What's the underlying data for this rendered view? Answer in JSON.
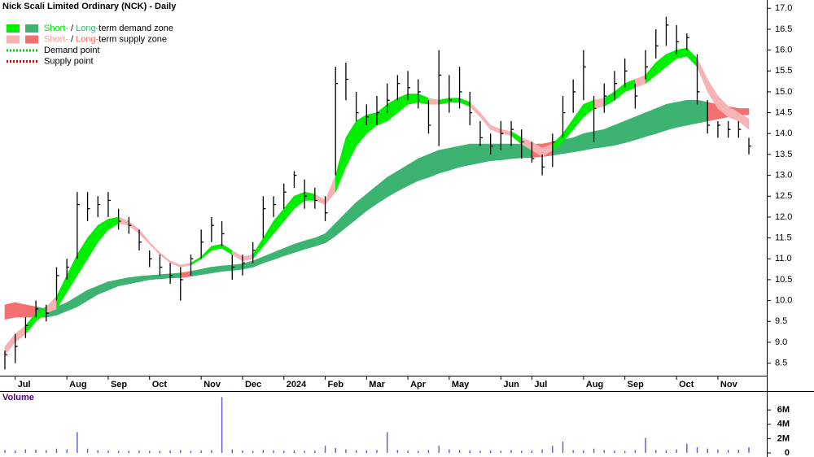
{
  "chart_data": [
    {
      "type": "ohlc",
      "title": "Nick Scali Limited Ordinary (NCK) - Daily",
      "legend": [
        {
          "texts": [
            "Short-",
            " / ",
            "Long-",
            "term demand zone"
          ],
          "text_colors": [
            "#00dd00",
            "#000000",
            "#3cb371",
            "#000000"
          ],
          "swatches": [
            "#00ee00",
            "#3cb371"
          ]
        },
        {
          "texts": [
            "Short-",
            " / ",
            "Long-",
            "term supply zone"
          ],
          "text_colors": [
            "#f5a0a0",
            "#000000",
            "#f26d6d",
            "#000000"
          ],
          "swatches": [
            "#f7b3b3",
            "#f47070"
          ]
        },
        {
          "texts": [
            "Demand point"
          ],
          "text_colors": [
            "#000000"
          ],
          "line": "#00cc00"
        },
        {
          "texts": [
            "Supply point"
          ],
          "text_colors": [
            "#000000"
          ],
          "line": "#dd0000"
        }
      ],
      "categories": [
        null,
        "Jul",
        null,
        null,
        null,
        null,
        "Aug",
        null,
        null,
        null,
        "Sep",
        null,
        null,
        null,
        "Oct",
        null,
        null,
        null,
        null,
        "Nov",
        null,
        null,
        null,
        "Dec",
        null,
        null,
        null,
        "2024",
        null,
        null,
        null,
        "Feb",
        null,
        null,
        null,
        "Mar",
        null,
        null,
        null,
        "Apr",
        null,
        null,
        null,
        "May",
        null,
        null,
        null,
        null,
        "Jun",
        null,
        null,
        "Jul",
        null,
        null,
        null,
        null,
        "Aug",
        null,
        null,
        null,
        "Sep",
        null,
        null,
        null,
        null,
        "Oct",
        null,
        null,
        null,
        "Nov",
        null,
        null,
        null
      ],
      "close": [
        8.7,
        8.9,
        9.4,
        9.8,
        9.7,
        10.6,
        10.8,
        12.3,
        12.2,
        12.3,
        12.4,
        11.9,
        11.8,
        11.4,
        11.0,
        10.8,
        10.6,
        10.5,
        11.0,
        11.4,
        11.8,
        11.6,
        10.8,
        10.9,
        11.2,
        12.2,
        12.3,
        12.6,
        13.0,
        12.5,
        12.4,
        12.1,
        15.2,
        15.3,
        14.5,
        14.4,
        14.5,
        14.8,
        15.2,
        15.1,
        15.0,
        14.2,
        15.4,
        14.8,
        15.0,
        14.5,
        13.9,
        13.7,
        14.0,
        14.1,
        13.8,
        13.4,
        13.2,
        13.8,
        14.5,
        15.0,
        15.6,
        14.6,
        14.9,
        15.2,
        15.5,
        14.9,
        15.6,
        16.1,
        16.6,
        16.2,
        16.3,
        15.0,
        14.2,
        14.2,
        14.1,
        14.1,
        13.7
      ],
      "high": [
        8.8,
        9.2,
        9.6,
        10.0,
        9.9,
        10.8,
        11.0,
        12.6,
        12.6,
        12.5,
        12.6,
        12.2,
        12.0,
        11.7,
        11.2,
        11.1,
        10.9,
        10.8,
        11.1,
        11.7,
        12.0,
        11.9,
        11.1,
        11.1,
        11.4,
        12.5,
        12.5,
        12.8,
        13.1,
        12.9,
        12.7,
        12.5,
        15.6,
        15.7,
        15.0,
        14.7,
        14.9,
        15.2,
        15.4,
        15.5,
        15.3,
        14.8,
        16.0,
        15.4,
        15.6,
        15.0,
        14.3,
        14.0,
        14.3,
        14.3,
        14.1,
        13.8,
        13.5,
        14.0,
        14.9,
        15.3,
        16.0,
        14.9,
        15.2,
        15.5,
        15.8,
        15.2,
        16.0,
        16.5,
        16.8,
        16.6,
        16.4,
        15.9,
        14.8,
        14.3,
        14.3,
        14.3,
        13.9
      ],
      "low": [
        8.35,
        8.5,
        9.1,
        9.6,
        9.5,
        10.0,
        10.5,
        11.0,
        11.9,
        12.0,
        12.0,
        11.7,
        11.6,
        11.2,
        10.8,
        10.6,
        10.4,
        10.0,
        10.6,
        11.0,
        11.4,
        11.3,
        10.5,
        10.6,
        10.9,
        11.5,
        12.0,
        12.2,
        12.7,
        12.2,
        12.2,
        11.9,
        13.0,
        14.8,
        14.3,
        14.2,
        14.2,
        14.5,
        14.8,
        14.8,
        14.6,
        14.0,
        13.7,
        14.5,
        14.6,
        14.2,
        13.7,
        13.5,
        13.6,
        13.7,
        13.4,
        13.3,
        13.0,
        13.2,
        13.9,
        14.5,
        14.8,
        13.8,
        14.5,
        14.8,
        15.1,
        14.6,
        15.3,
        15.8,
        16.1,
        15.9,
        16.0,
        14.7,
        14.0,
        13.9,
        13.9,
        13.9,
        13.5
      ],
      "short_term_zone": {
        "upper": [
          8.9,
          9.2,
          9.4,
          9.7,
          9.85,
          10.1,
          10.6,
          11.1,
          11.5,
          11.8,
          11.95,
          12.0,
          11.9,
          11.7,
          11.4,
          11.15,
          10.95,
          10.85,
          10.9,
          11.05,
          11.3,
          11.35,
          11.2,
          11.05,
          11.1,
          11.5,
          11.9,
          12.2,
          12.5,
          12.6,
          12.55,
          12.4,
          13.0,
          13.9,
          14.3,
          14.45,
          14.5,
          14.7,
          14.85,
          14.95,
          14.95,
          14.85,
          14.8,
          14.85,
          14.85,
          14.75,
          14.5,
          14.2,
          14.1,
          14.05,
          13.9,
          13.8,
          13.65,
          13.75,
          14.0,
          14.35,
          14.7,
          14.8,
          14.85,
          15.0,
          15.2,
          15.3,
          15.4,
          15.7,
          15.9,
          16.0,
          16.05,
          15.8,
          15.3,
          14.9,
          14.65,
          14.5,
          14.35
        ],
        "lower": [
          8.7,
          9.0,
          9.2,
          9.5,
          9.7,
          9.8,
          10.2,
          10.6,
          11.0,
          11.4,
          11.7,
          11.85,
          11.8,
          11.6,
          11.35,
          11.1,
          10.9,
          10.8,
          10.85,
          11.0,
          11.2,
          11.25,
          11.1,
          10.95,
          11.0,
          11.3,
          11.6,
          11.9,
          12.2,
          12.4,
          12.4,
          12.3,
          12.6,
          13.2,
          13.7,
          14.0,
          14.2,
          14.3,
          14.5,
          14.7,
          14.75,
          14.7,
          14.7,
          14.75,
          14.75,
          14.65,
          14.4,
          14.1,
          14.0,
          13.95,
          13.75,
          13.6,
          13.45,
          13.6,
          13.8,
          14.1,
          14.4,
          14.6,
          14.65,
          14.8,
          15.0,
          15.1,
          15.2,
          15.4,
          15.6,
          15.8,
          15.85,
          15.6,
          15.0,
          14.6,
          14.4,
          14.3,
          14.1
        ]
      },
      "long_term_zone": {
        "upper": [
          9.9,
          9.95,
          9.9,
          9.85,
          9.8,
          9.85,
          9.95,
          10.1,
          10.25,
          10.35,
          10.45,
          10.5,
          10.55,
          10.58,
          10.6,
          10.62,
          10.64,
          10.66,
          10.7,
          10.75,
          10.8,
          10.83,
          10.85,
          10.88,
          10.95,
          11.05,
          11.15,
          11.25,
          11.35,
          11.43,
          11.5,
          11.6,
          11.85,
          12.1,
          12.35,
          12.55,
          12.75,
          12.95,
          13.1,
          13.25,
          13.4,
          13.5,
          13.6,
          13.65,
          13.7,
          13.75,
          13.75,
          13.75,
          13.75,
          13.75,
          13.75,
          13.75,
          13.75,
          13.8,
          13.85,
          13.9,
          14.0,
          14.05,
          14.1,
          14.2,
          14.3,
          14.4,
          14.5,
          14.6,
          14.7,
          14.75,
          14.8,
          14.8,
          14.75,
          14.7,
          14.65,
          14.6,
          14.6
        ],
        "lower": [
          9.55,
          9.6,
          9.6,
          9.6,
          9.6,
          9.65,
          9.75,
          9.85,
          10.0,
          10.15,
          10.25,
          10.35,
          10.4,
          10.45,
          10.5,
          10.52,
          10.54,
          10.55,
          10.58,
          10.62,
          10.66,
          10.7,
          10.72,
          10.75,
          10.8,
          10.9,
          10.98,
          11.07,
          11.15,
          11.23,
          11.3,
          11.38,
          11.55,
          11.75,
          11.95,
          12.15,
          12.32,
          12.48,
          12.62,
          12.75,
          12.87,
          12.95,
          13.05,
          13.12,
          13.2,
          13.25,
          13.3,
          13.35,
          13.37,
          13.4,
          13.42,
          13.43,
          13.45,
          13.48,
          13.52,
          13.56,
          13.6,
          13.65,
          13.68,
          13.72,
          13.78,
          13.85,
          13.93,
          14.0,
          14.08,
          14.15,
          14.2,
          14.25,
          14.3,
          14.35,
          14.4,
          14.45,
          14.45
        ]
      },
      "ylim": [
        8.2,
        17.2
      ],
      "yticks": [
        8.5,
        {
          "value": 9,
          "label": "9.0"
        },
        9.5,
        {
          "value": 10,
          "label": "10.0"
        },
        10.5,
        {
          "value": 11,
          "label": "11.0"
        },
        11.5,
        {
          "value": 12,
          "label": "12.0"
        },
        12.5,
        {
          "value": 13,
          "label": "13.0"
        },
        13.5,
        {
          "value": 14,
          "label": "14.0"
        },
        14.5,
        {
          "value": 15,
          "label": "15.0"
        },
        15.5,
        {
          "value": 16,
          "label": "16.0"
        },
        16.5,
        {
          "value": 17,
          "label": "17.0"
        }
      ],
      "color": "#000000"
    },
    {
      "type": "bar",
      "title": "Volume",
      "values": [
        400000,
        350000,
        500000,
        450000,
        400000,
        600000,
        500000,
        2900000,
        600000,
        400000,
        350000,
        300000,
        300000,
        350000,
        300000,
        300000,
        350000,
        400000,
        300000,
        350000,
        400000,
        7800000,
        500000,
        350000,
        300000,
        400000,
        350000,
        300000,
        350000,
        300000,
        350000,
        1000000,
        700000,
        500000,
        400000,
        350000,
        400000,
        2900000,
        400000,
        350000,
        300000,
        400000,
        1000000,
        500000,
        400000,
        350000,
        300000,
        350000,
        300000,
        400000,
        300000,
        350000,
        500000,
        1000000,
        1600000,
        400000,
        350000,
        600000,
        400000,
        350000,
        300000,
        400000,
        2100000,
        400000,
        350000,
        500000,
        1300000,
        800000,
        600000,
        500000,
        400000,
        450000,
        800000
      ],
      "color": "#5a5ad0",
      "ylim": [
        0,
        8400000
      ],
      "yticks": [
        0,
        {
          "value": 2000000,
          "label": "2M"
        },
        {
          "value": 4000000,
          "label": "4M"
        },
        {
          "value": 6000000,
          "label": "6M"
        }
      ]
    }
  ]
}
